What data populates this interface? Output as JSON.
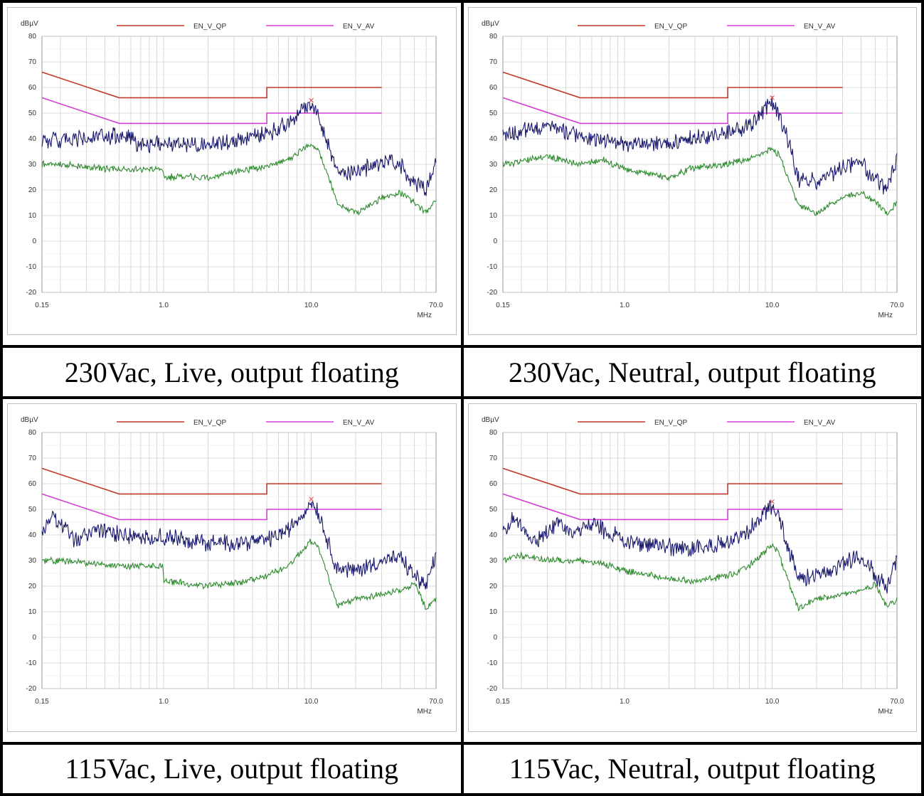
{
  "captions": [
    "230Vac, Live, output floating",
    "230Vac, Neutral, output floating",
    "115Vac, Live, output floating",
    "115Vac, Neutral, output floating"
  ],
  "colors": {
    "qp_limit": "#c0392b",
    "av_limit": "#d63cd6",
    "qp_trace": "#1a1a6e",
    "av_trace": "#2e8b2e",
    "grid": "#c8c8c8",
    "marker": "#e05050"
  },
  "chart_data": [
    {
      "type": "line",
      "caption": "230Vac, Live, output floating",
      "xlabel": "MHz",
      "ylabel": "dBµV",
      "x_scale": "log",
      "xlim": [
        0.15,
        70.0
      ],
      "ylim": [
        -20,
        80
      ],
      "x_tick_labels": [
        "0.15",
        "1.0",
        "10.0",
        "70.0"
      ],
      "y_ticks": [
        80,
        70,
        60,
        50,
        40,
        30,
        20,
        10,
        0,
        -10,
        -20
      ],
      "grid": true,
      "legend": "top",
      "series": [
        {
          "name": "EN_V_QP",
          "x": [
            0.15,
            0.5,
            0.5,
            5.0,
            5.0,
            30.0
          ],
          "y": [
            66,
            56,
            56,
            56,
            60,
            60
          ]
        },
        {
          "name": "EN_V_AV",
          "x": [
            0.15,
            0.5,
            0.5,
            5.0,
            5.0,
            30.0
          ],
          "y": [
            56,
            46,
            46,
            46,
            50,
            50
          ]
        },
        {
          "name": "",
          "x": [
            0.15,
            0.2,
            0.3,
            0.5,
            0.7,
            1.0,
            2.0,
            3.0,
            5.0,
            7.0,
            9.0,
            10.0,
            11.0,
            13.0,
            15.0,
            20.0,
            30.0,
            40.0,
            50.0,
            60.0,
            70.0
          ],
          "y": [
            40,
            39,
            40,
            41,
            38,
            38,
            38,
            39,
            42,
            46,
            52,
            54,
            50,
            38,
            27,
            27,
            31,
            30,
            23,
            20,
            31
          ]
        },
        {
          "name": "",
          "x": [
            0.15,
            0.2,
            0.3,
            0.5,
            0.99,
            1.0,
            2.0,
            3.0,
            5.0,
            7.0,
            9.0,
            10.0,
            11.0,
            13.0,
            15.0,
            20.0,
            30.0,
            40.0,
            50.0,
            60.0,
            70.0
          ],
          "y": [
            30,
            30,
            29,
            28,
            28,
            25,
            25,
            27,
            29,
            32,
            36,
            38,
            36,
            26,
            15,
            11,
            17,
            19,
            15,
            11,
            16
          ]
        }
      ]
    },
    {
      "type": "line",
      "caption": "230Vac, Neutral, output floating",
      "xlabel": "MHz",
      "ylabel": "dBµV",
      "x_scale": "log",
      "xlim": [
        0.15,
        70.0
      ],
      "ylim": [
        -20,
        80
      ],
      "x_tick_labels": [
        "0.15",
        "1.0",
        "10.0",
        "70.0"
      ],
      "y_ticks": [
        80,
        70,
        60,
        50,
        40,
        30,
        20,
        10,
        0,
        -10,
        -20
      ],
      "grid": true,
      "legend": "top",
      "series": [
        {
          "name": "EN_V_QP",
          "x": [
            0.15,
            0.5,
            0.5,
            5.0,
            5.0,
            30.0
          ],
          "y": [
            66,
            56,
            56,
            56,
            60,
            60
          ]
        },
        {
          "name": "EN_V_AV",
          "x": [
            0.15,
            0.5,
            0.5,
            5.0,
            5.0,
            30.0
          ],
          "y": [
            56,
            46,
            46,
            46,
            50,
            50
          ]
        },
        {
          "name": "",
          "x": [
            0.15,
            0.2,
            0.3,
            0.5,
            0.7,
            1.0,
            2.0,
            3.0,
            5.0,
            7.0,
            9.0,
            10.0,
            11.0,
            13.0,
            15.0,
            20.0,
            30.0,
            40.0,
            50.0,
            60.0,
            70.0
          ],
          "y": [
            41,
            43,
            45,
            41,
            40,
            38,
            38,
            40,
            42,
            45,
            51,
            55,
            50,
            38,
            24,
            23,
            29,
            30,
            24,
            20,
            32
          ]
        },
        {
          "name": "",
          "x": [
            0.15,
            0.2,
            0.3,
            0.5,
            0.7,
            1.0,
            2.0,
            3.0,
            5.0,
            7.0,
            9.0,
            10.0,
            11.0,
            13.0,
            15.0,
            20.0,
            30.0,
            40.0,
            50.0,
            60.0,
            70.0
          ],
          "y": [
            30,
            31,
            33,
            30,
            32,
            28,
            25,
            29,
            30,
            32,
            35,
            36,
            34,
            24,
            14,
            11,
            17,
            19,
            15,
            11,
            15
          ]
        }
      ]
    },
    {
      "type": "line",
      "caption": "115Vac, Live, output floating",
      "xlabel": "MHz",
      "ylabel": "dBµV",
      "x_scale": "log",
      "xlim": [
        0.15,
        70.0
      ],
      "ylim": [
        -20,
        80
      ],
      "x_tick_labels": [
        "0.15",
        "1.0",
        "10.0",
        "70.0"
      ],
      "y_ticks": [
        80,
        70,
        60,
        50,
        40,
        30,
        20,
        10,
        0,
        -10,
        -20
      ],
      "grid": true,
      "legend": "top",
      "series": [
        {
          "name": "EN_V_QP",
          "x": [
            0.15,
            0.5,
            0.5,
            5.0,
            5.0,
            30.0
          ],
          "y": [
            66,
            56,
            56,
            56,
            60,
            60
          ]
        },
        {
          "name": "EN_V_AV",
          "x": [
            0.15,
            0.5,
            0.5,
            5.0,
            5.0,
            30.0
          ],
          "y": [
            56,
            46,
            46,
            46,
            50,
            50
          ]
        },
        {
          "name": "",
          "x": [
            0.15,
            0.18,
            0.25,
            0.35,
            0.5,
            0.7,
            1.0,
            2.0,
            3.0,
            5.0,
            7.0,
            9.0,
            10.0,
            11.0,
            13.0,
            15.0,
            20.0,
            30.0,
            40.0,
            50.0,
            60.0,
            70.0
          ],
          "y": [
            41,
            47,
            38,
            42,
            40,
            39,
            39,
            37,
            37,
            38,
            42,
            49,
            53,
            50,
            37,
            27,
            26,
            30,
            31,
            24,
            20,
            32
          ]
        },
        {
          "name": "",
          "x": [
            0.15,
            0.2,
            0.3,
            0.5,
            0.99,
            1.0,
            2.0,
            3.0,
            5.0,
            7.0,
            9.0,
            10.0,
            11.0,
            13.0,
            15.0,
            20.0,
            30.0,
            40.0,
            50.0,
            60.0,
            70.0
          ],
          "y": [
            30,
            30,
            29,
            28,
            28,
            22,
            20,
            21,
            24,
            28,
            35,
            38,
            36,
            24,
            12,
            15,
            17,
            18,
            21,
            11,
            15
          ]
        }
      ]
    },
    {
      "type": "line",
      "caption": "115Vac, Neutral, output floating",
      "xlabel": "MHz",
      "ylabel": "dBµV",
      "x_scale": "log",
      "xlim": [
        0.15,
        70.0
      ],
      "ylim": [
        -20,
        80
      ],
      "x_tick_labels": [
        "0.15",
        "1.0",
        "10.0",
        "70.0"
      ],
      "y_ticks": [
        80,
        70,
        60,
        50,
        40,
        30,
        20,
        10,
        0,
        -10,
        -20
      ],
      "grid": true,
      "legend": "top",
      "series": [
        {
          "name": "EN_V_QP",
          "x": [
            0.15,
            0.5,
            0.5,
            5.0,
            5.0,
            30.0
          ],
          "y": [
            66,
            56,
            56,
            56,
            60,
            60
          ]
        },
        {
          "name": "EN_V_AV",
          "x": [
            0.15,
            0.5,
            0.5,
            5.0,
            5.0,
            30.0
          ],
          "y": [
            56,
            46,
            46,
            46,
            50,
            50
          ]
        },
        {
          "name": "",
          "x": [
            0.15,
            0.18,
            0.25,
            0.35,
            0.45,
            0.6,
            1.0,
            2.0,
            3.0,
            5.0,
            7.0,
            9.0,
            10.0,
            11.0,
            13.0,
            15.0,
            20.0,
            30.0,
            40.0,
            50.0,
            60.0,
            70.0
          ],
          "y": [
            41,
            47,
            37,
            45,
            40,
            44,
            38,
            35,
            35,
            37,
            42,
            49,
            52,
            48,
            34,
            23,
            24,
            29,
            32,
            24,
            20,
            31
          ]
        },
        {
          "name": "",
          "x": [
            0.15,
            0.2,
            0.3,
            0.5,
            0.7,
            1.0,
            2.0,
            3.0,
            5.0,
            7.0,
            9.0,
            10.0,
            11.0,
            13.0,
            15.0,
            20.0,
            30.0,
            40.0,
            50.0,
            60.0,
            70.0
          ],
          "y": [
            30,
            32,
            30,
            30,
            29,
            26,
            23,
            22,
            24,
            28,
            34,
            36,
            33,
            21,
            11,
            15,
            17,
            18,
            21,
            12,
            15
          ]
        }
      ]
    }
  ]
}
